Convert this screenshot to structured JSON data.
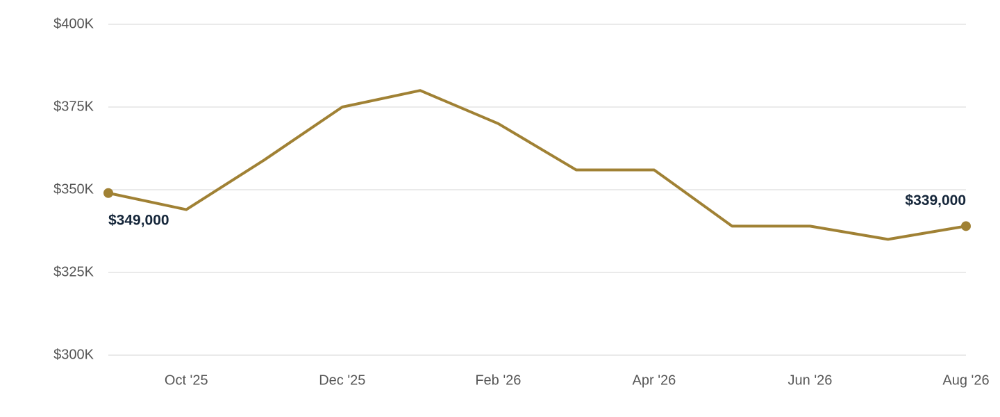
{
  "chart_data": {
    "type": "line",
    "categories": [
      null,
      "Oct '25",
      null,
      "Dec '25",
      null,
      "Feb '26",
      null,
      "Apr '26",
      null,
      "Jun '26",
      null,
      "Aug '26"
    ],
    "series": [
      {
        "color": "#a08134",
        "values": [
          349000,
          344000,
          359000,
          375000,
          380000,
          370000,
          356000,
          356000,
          339000,
          339000,
          335000,
          339000
        ],
        "value_labels": [
          "$349,000",
          null,
          null,
          null,
          null,
          null,
          null,
          null,
          null,
          null,
          null,
          "$339,000"
        ]
      }
    ],
    "ylim": [
      300000,
      400000
    ],
    "yticks": [
      {
        "value": 300000,
        "label": "$300K"
      },
      {
        "value": 325000,
        "label": "$325K"
      },
      {
        "value": 350000,
        "label": "$350K"
      },
      {
        "value": 375000,
        "label": "$375K"
      },
      {
        "value": 400000,
        "label": "$400K"
      }
    ],
    "grid": true
  }
}
